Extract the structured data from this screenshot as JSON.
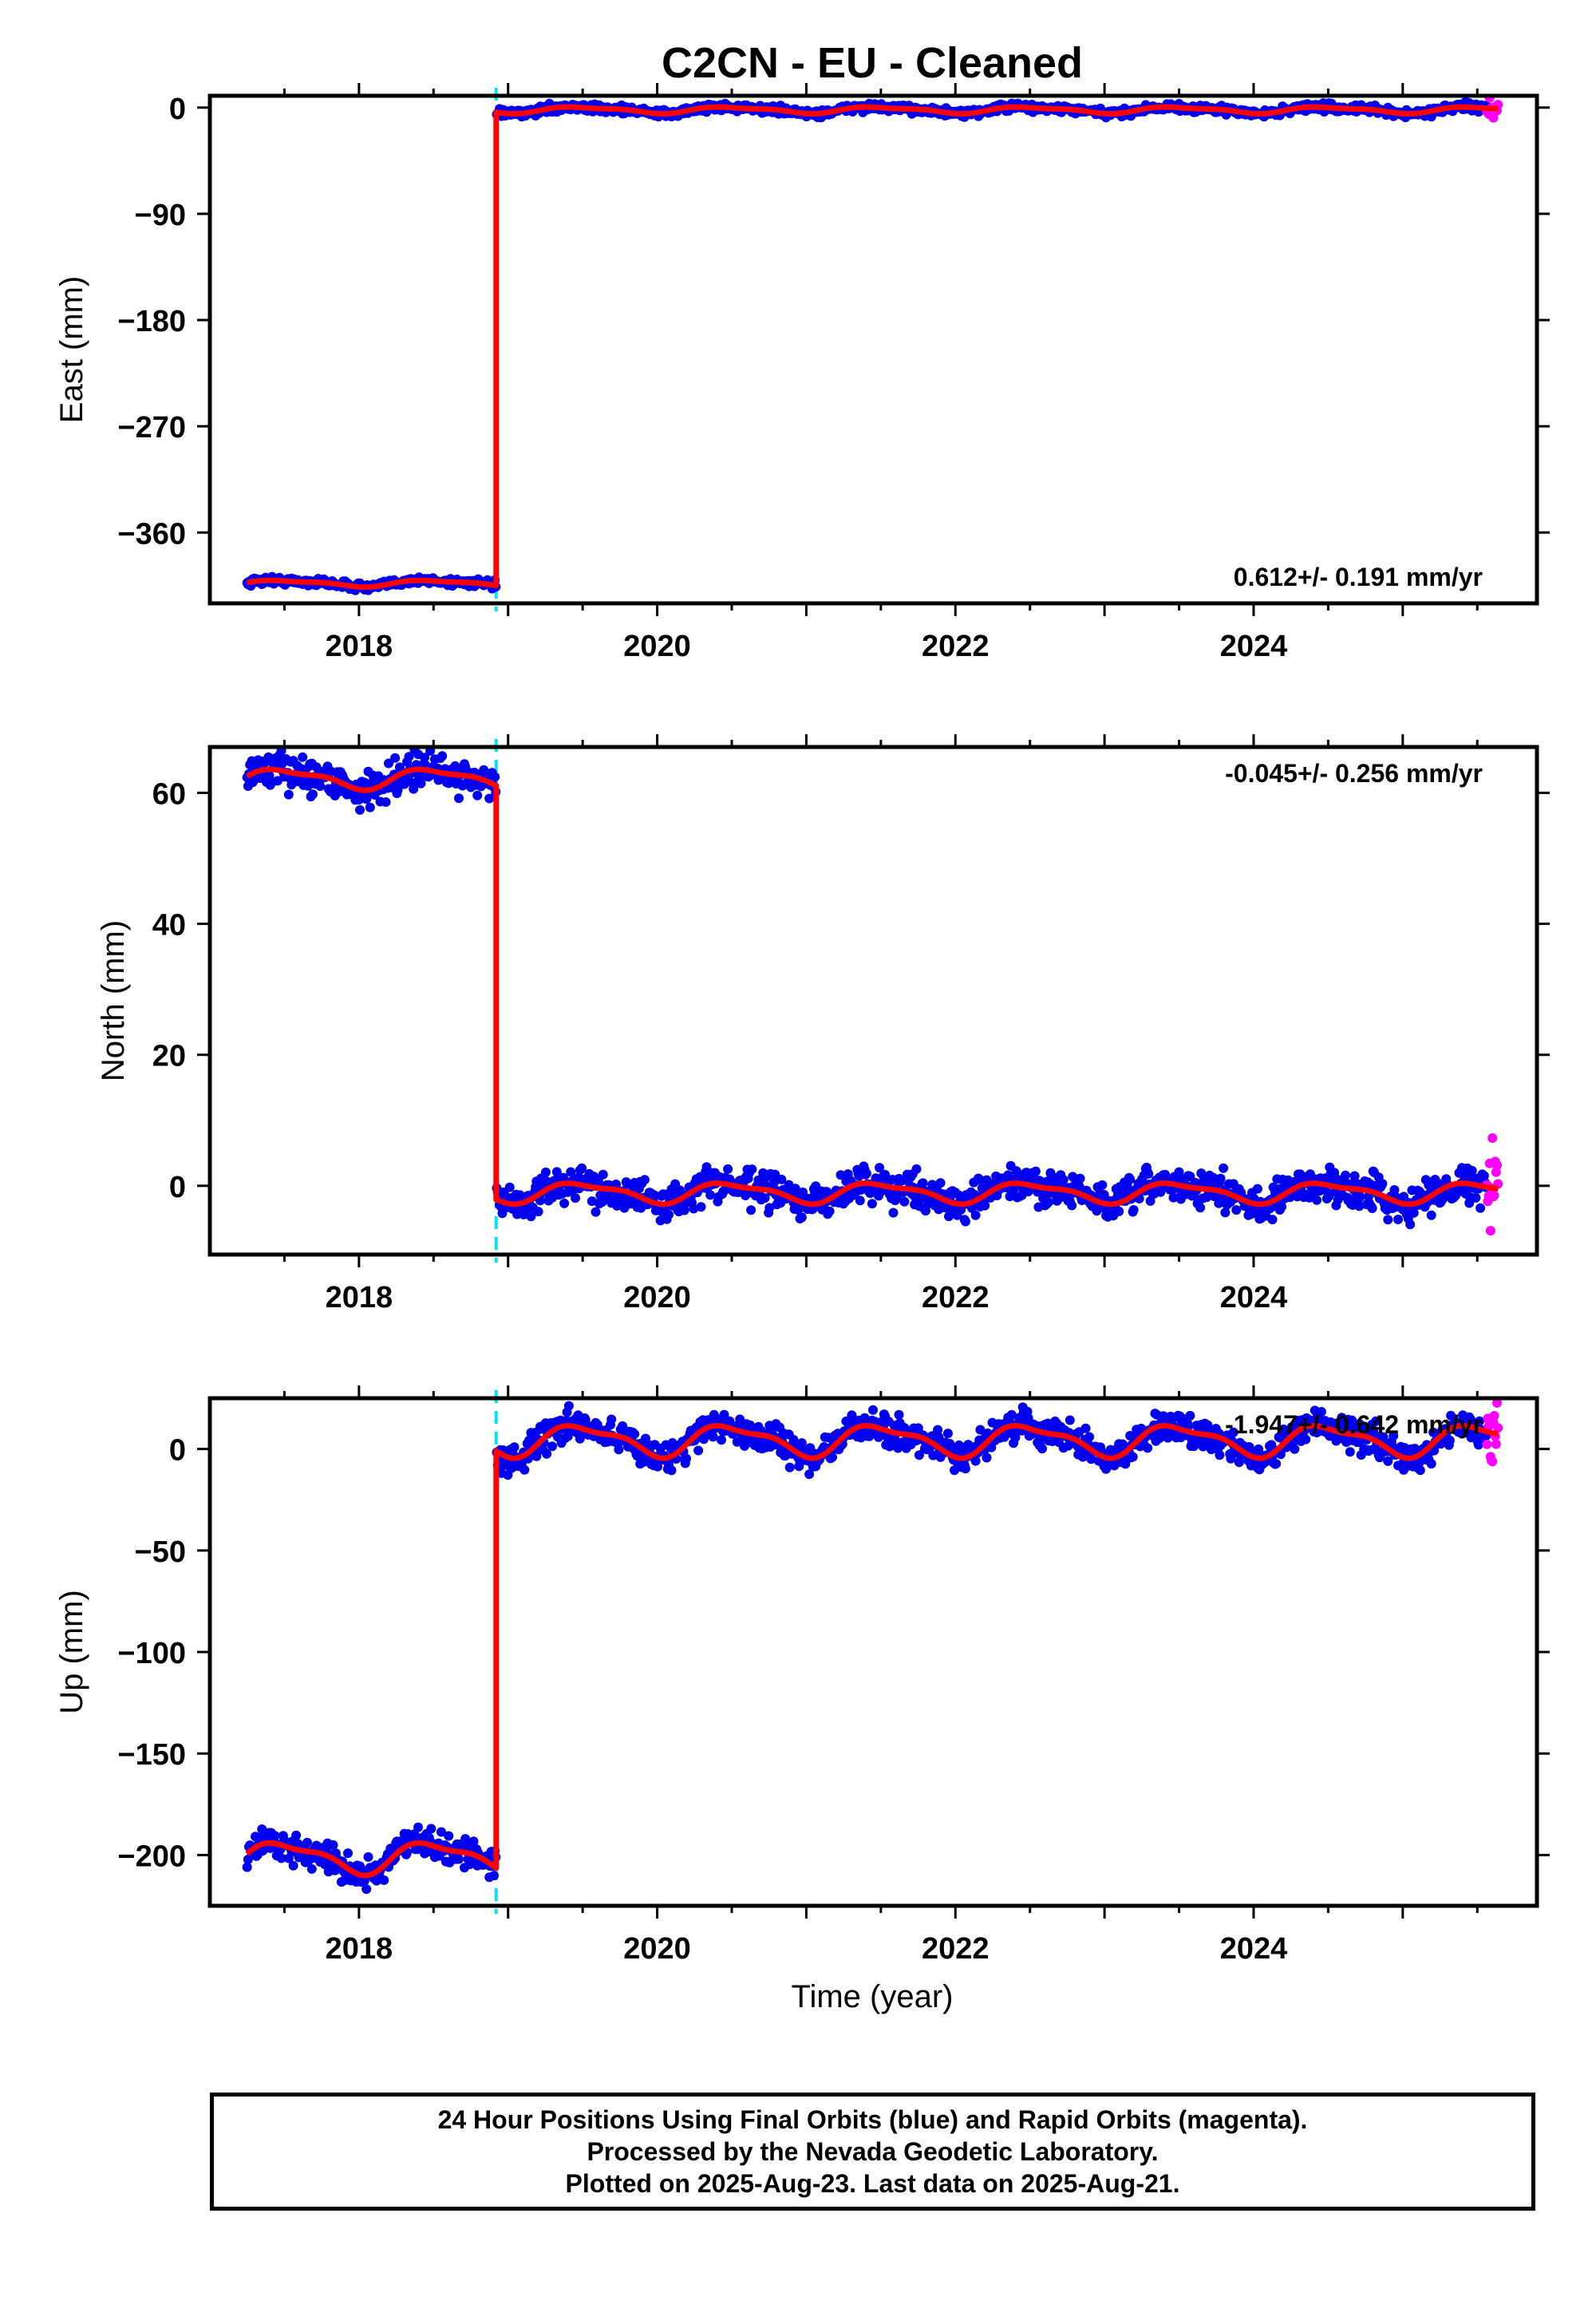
{
  "chart_data": {
    "title": "C2CN  - EU - Cleaned",
    "xlabel": "Time (year)",
    "xlim": [
      2017.0,
      2025.9
    ],
    "x_ticks": [
      2018,
      2020,
      2022,
      2024
    ],
    "offset_epoch": 2018.92,
    "data_span": [
      2017.25,
      2025.64
    ],
    "rapid_orbit_span": [
      2025.56,
      2025.64
    ],
    "colors": {
      "final_orbits": "#0000ee",
      "rapid_orbits": "#ff00ff",
      "model_fit": "#ff0000",
      "offset_marker": "#00e5ee"
    },
    "panels": [
      {
        "type": "scatter",
        "name": "east",
        "ylabel": "East (mm)",
        "ylim": [
          -420,
          10
        ],
        "y_ticks": [
          0,
          -90,
          -180,
          -270,
          -360
        ],
        "rate_text": "0.612+/- 0.191 mm/yr",
        "rate_position": "bottom-right",
        "before_offset_level": -403,
        "after_offset_level": -2,
        "seasonal_amplitude": 2.5,
        "noise": 1.6
      },
      {
        "type": "scatter",
        "name": "north",
        "ylabel": "North (mm)",
        "ylim": [
          -10.5,
          67
        ],
        "y_ticks": [
          60,
          40,
          20,
          0
        ],
        "rate_text": "-0.045+/- 0.256 mm/yr",
        "rate_position": "top-right",
        "before_offset_level": 62.2,
        "after_offset_level": -1.0,
        "seasonal_amplitude": 1.4,
        "noise": 1.3
      },
      {
        "type": "scatter",
        "name": "up",
        "ylabel": "Up (mm)",
        "ylim": [
          -225,
          25
        ],
        "y_ticks": [
          0,
          -50,
          -100,
          -150,
          -200
        ],
        "rate_text": "-1.947+/- 0.642 mm/yr",
        "rate_position": "top-right",
        "before_offset_level": -201,
        "after_offset_level": 4.5,
        "seasonal_amplitude": 7,
        "noise": 3.6
      }
    ]
  },
  "footer": {
    "line1": "24 Hour Positions Using Final Orbits (blue) and Rapid Orbits (magenta).",
    "line2": "Processed by the Nevada Geodetic Laboratory.",
    "line3": "Plotted on 2025-Aug-23. Last data on 2025-Aug-21."
  }
}
